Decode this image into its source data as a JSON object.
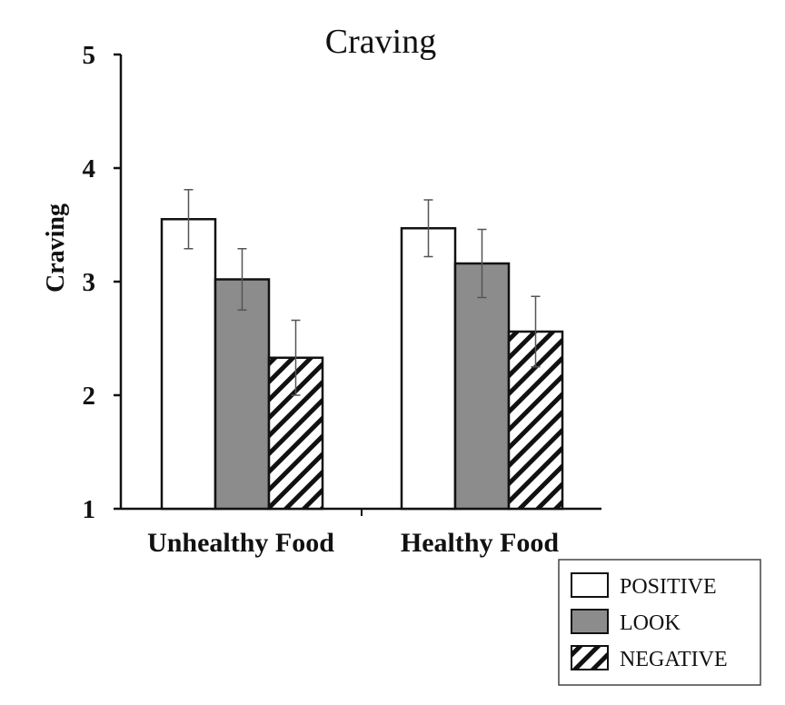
{
  "chart_data": {
    "type": "bar",
    "title": "Craving",
    "xlabel": "",
    "ylabel": "Craving",
    "ylim": [
      1,
      5
    ],
    "yticks": [
      1,
      2,
      3,
      4,
      5
    ],
    "categories": [
      "Unhealthy Food",
      "Healthy Food"
    ],
    "series": [
      {
        "name": "POSITIVE",
        "values": [
          3.55,
          3.47
        ],
        "errors": [
          0.26,
          0.25
        ],
        "fill": "#ffffff",
        "pattern": "none"
      },
      {
        "name": "LOOK",
        "values": [
          3.02,
          3.16
        ],
        "errors": [
          0.27,
          0.3
        ],
        "fill": "#8c8c8c",
        "pattern": "none"
      },
      {
        "name": "NEGATIVE",
        "values": [
          2.33,
          2.56
        ],
        "errors": [
          0.33,
          0.31
        ],
        "fill": "#ffffff",
        "pattern": "diagonal-hatch"
      }
    ],
    "grid": false,
    "legend_position": "bottom-right"
  }
}
